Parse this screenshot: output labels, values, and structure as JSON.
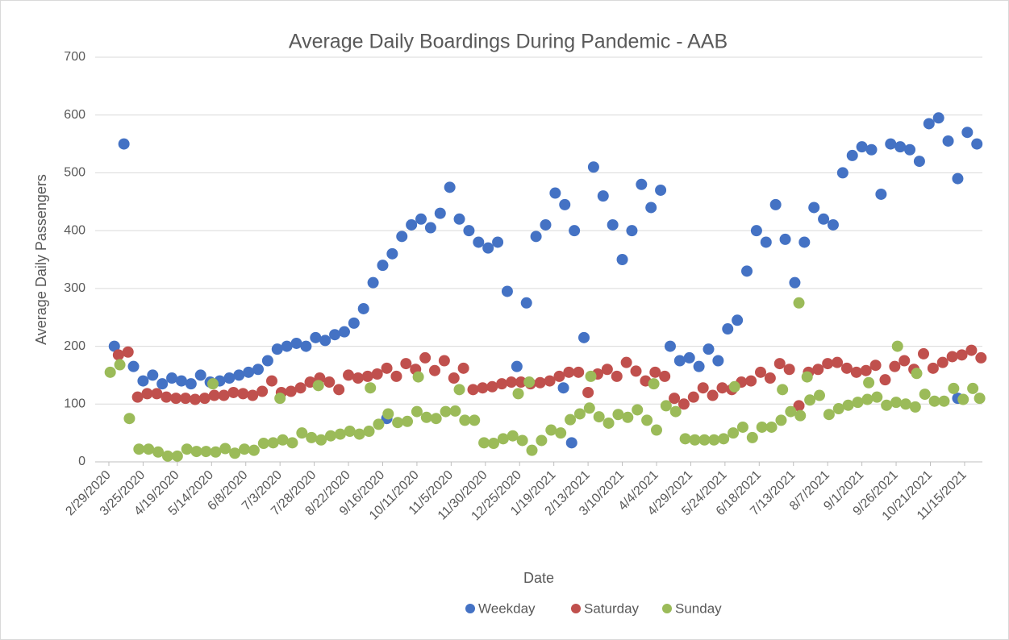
{
  "chart_data": {
    "type": "scatter",
    "title": "Average Daily Boardings During Pandemic - AAB",
    "x_label": "Date",
    "y_label": "Average Daily Passengers",
    "ylim": [
      0,
      700
    ],
    "yticks": [
      0,
      100,
      200,
      300,
      400,
      500,
      600,
      700
    ],
    "grid": true,
    "legend": "bottom",
    "xlim": [
      "2020-02-19",
      "2021-11-28"
    ],
    "xticks": [
      {
        "value": "2020-02-29",
        "label": "2/29/2020"
      },
      {
        "value": "2020-03-25",
        "label": "3/25/2020"
      },
      {
        "value": "2020-04-19",
        "label": "4/19/2020"
      },
      {
        "value": "2020-05-14",
        "label": "5/14/2020"
      },
      {
        "value": "2020-06-08",
        "label": "6/8/2020"
      },
      {
        "value": "2020-07-03",
        "label": "7/3/2020"
      },
      {
        "value": "2020-07-28",
        "label": "7/28/2020"
      },
      {
        "value": "2020-08-22",
        "label": "8/22/2020"
      },
      {
        "value": "2020-09-16",
        "label": "9/16/2020"
      },
      {
        "value": "2020-10-11",
        "label": "10/11/2020"
      },
      {
        "value": "2020-11-05",
        "label": "11/5/2020"
      },
      {
        "value": "2020-11-30",
        "label": "11/30/2020"
      },
      {
        "value": "2020-12-25",
        "label": "12/25/2020"
      },
      {
        "value": "2021-01-19",
        "label": "1/19/2021"
      },
      {
        "value": "2021-02-13",
        "label": "2/13/2021"
      },
      {
        "value": "2021-03-10",
        "label": "3/10/2021"
      },
      {
        "value": "2021-04-04",
        "label": "4/4/2021"
      },
      {
        "value": "2021-04-29",
        "label": "4/29/2021"
      },
      {
        "value": "2021-05-24",
        "label": "5/24/2021"
      },
      {
        "value": "2021-06-18",
        "label": "6/18/2021"
      },
      {
        "value": "2021-07-13",
        "label": "7/13/2021"
      },
      {
        "value": "2021-08-07",
        "label": "8/7/2021"
      },
      {
        "value": "2021-09-01",
        "label": "9/1/2021"
      },
      {
        "value": "2021-09-26",
        "label": "9/26/2021"
      },
      {
        "value": "2021-10-21",
        "label": "10/21/2021"
      },
      {
        "value": "2021-11-15",
        "label": "11/15/2021"
      }
    ],
    "series": [
      {
        "name": "Weekday",
        "color": "#4472c4",
        "x": [
          "2020-03-04",
          "2020-03-11",
          "2020-03-18",
          "2020-03-25",
          "2020-04-01",
          "2020-04-08",
          "2020-04-15",
          "2020-04-22",
          "2020-04-29",
          "2020-05-06",
          "2020-05-13",
          "2020-05-20",
          "2020-05-27",
          "2020-06-03",
          "2020-06-10",
          "2020-06-17",
          "2020-06-24",
          "2020-07-01",
          "2020-07-08",
          "2020-07-15",
          "2020-07-22",
          "2020-07-29",
          "2020-08-05",
          "2020-08-12",
          "2020-08-19",
          "2020-08-26",
          "2020-09-02",
          "2020-09-09",
          "2020-09-16",
          "2020-09-23",
          "2020-09-30",
          "2020-10-07",
          "2020-10-14",
          "2020-10-21",
          "2020-10-28",
          "2020-11-04",
          "2020-11-11",
          "2020-11-18",
          "2020-11-25",
          "2020-12-02",
          "2020-12-09",
          "2020-12-16",
          "2020-12-23",
          "2020-12-30",
          "2021-01-06",
          "2021-01-13",
          "2021-01-20",
          "2021-01-27",
          "2021-02-03",
          "2021-02-10",
          "2021-02-17",
          "2021-02-24",
          "2021-03-03",
          "2021-03-10",
          "2021-03-17",
          "2021-03-24",
          "2021-03-31",
          "2021-04-07",
          "2021-04-14",
          "2021-04-21",
          "2021-04-28",
          "2021-05-05",
          "2021-05-12",
          "2021-05-19",
          "2021-05-26",
          "2021-06-02",
          "2021-06-09",
          "2021-06-16",
          "2021-06-23",
          "2021-06-30",
          "2021-07-07",
          "2021-07-14",
          "2021-07-21",
          "2021-07-28",
          "2021-08-04",
          "2021-08-11",
          "2021-08-18",
          "2021-08-25",
          "2021-09-01",
          "2021-09-08",
          "2021-09-15",
          "2021-09-22",
          "2021-09-29",
          "2021-10-06",
          "2021-10-13",
          "2021-10-20",
          "2021-10-27",
          "2021-11-03",
          "2021-11-10",
          "2021-11-17",
          "2021-11-24",
          "2020-09-19",
          "2021-01-26",
          "2021-02-01",
          "2021-11-10"
        ],
        "values": [
          200,
          550,
          165,
          140,
          150,
          135,
          145,
          140,
          135,
          150,
          138,
          140,
          145,
          150,
          155,
          160,
          175,
          195,
          200,
          205,
          200,
          215,
          210,
          220,
          225,
          240,
          265,
          310,
          340,
          360,
          390,
          410,
          420,
          405,
          430,
          475,
          420,
          400,
          380,
          370,
          380,
          295,
          165,
          275,
          390,
          410,
          465,
          445,
          400,
          215,
          510,
          460,
          410,
          350,
          400,
          480,
          440,
          470,
          200,
          175,
          180,
          165,
          195,
          175,
          230,
          245,
          330,
          400,
          380,
          445,
          385,
          310,
          380,
          440,
          420,
          410,
          500,
          530,
          545,
          540,
          463,
          550,
          545,
          540,
          520,
          585,
          595,
          555,
          490,
          570,
          550,
          75,
          128,
          33,
          110
        ]
      },
      {
        "name": "Saturday",
        "color": "#c0504d",
        "x": [
          "2020-03-07",
          "2020-03-14",
          "2020-03-21",
          "2020-03-28",
          "2020-04-04",
          "2020-04-11",
          "2020-04-18",
          "2020-04-25",
          "2020-05-02",
          "2020-05-09",
          "2020-05-16",
          "2020-05-23",
          "2020-05-30",
          "2020-06-06",
          "2020-06-13",
          "2020-06-20",
          "2020-06-27",
          "2020-07-04",
          "2020-07-11",
          "2020-07-18",
          "2020-07-25",
          "2020-08-01",
          "2020-08-08",
          "2020-08-15",
          "2020-08-22",
          "2020-08-29",
          "2020-09-05",
          "2020-09-12",
          "2020-09-19",
          "2020-09-26",
          "2020-10-03",
          "2020-10-10",
          "2020-10-17",
          "2020-10-24",
          "2020-10-31",
          "2020-11-07",
          "2020-11-14",
          "2020-11-21",
          "2020-11-28",
          "2020-12-05",
          "2020-12-12",
          "2020-12-19",
          "2020-12-26",
          "2021-01-02",
          "2021-01-09",
          "2021-01-16",
          "2021-01-23",
          "2021-01-30",
          "2021-02-06",
          "2021-02-13",
          "2021-02-20",
          "2021-02-27",
          "2021-03-06",
          "2021-03-13",
          "2021-03-20",
          "2021-03-27",
          "2021-04-03",
          "2021-04-10",
          "2021-04-17",
          "2021-04-24",
          "2021-05-01",
          "2021-05-08",
          "2021-05-15",
          "2021-05-22",
          "2021-05-29",
          "2021-06-05",
          "2021-06-12",
          "2021-06-19",
          "2021-06-26",
          "2021-07-03",
          "2021-07-10",
          "2021-07-17",
          "2021-07-24",
          "2021-07-31",
          "2021-08-07",
          "2021-08-14",
          "2021-08-21",
          "2021-08-28",
          "2021-09-04",
          "2021-09-11",
          "2021-09-18",
          "2021-09-25",
          "2021-10-02",
          "2021-10-09",
          "2021-10-16",
          "2021-10-23",
          "2021-10-30",
          "2021-11-06",
          "2021-11-13",
          "2021-11-20",
          "2021-11-27"
        ],
        "values": [
          185,
          190,
          112,
          118,
          118,
          112,
          110,
          110,
          108,
          110,
          115,
          115,
          120,
          118,
          115,
          122,
          140,
          120,
          122,
          128,
          138,
          145,
          138,
          125,
          150,
          145,
          148,
          152,
          162,
          148,
          170,
          160,
          180,
          158,
          175,
          145,
          162,
          125,
          128,
          130,
          135,
          138,
          138,
          135,
          137,
          140,
          148,
          155,
          155,
          120,
          152,
          160,
          148,
          172,
          157,
          140,
          155,
          148,
          110,
          100,
          112,
          128,
          115,
          128,
          125,
          138,
          140,
          155,
          145,
          170,
          160,
          97,
          155,
          160,
          170,
          172,
          162,
          155,
          158,
          167,
          142,
          165,
          175,
          160,
          187,
          162,
          172,
          182,
          185,
          193,
          180
        ]
      },
      {
        "name": "Sunday",
        "color": "#9bbb59",
        "x": [
          "2020-03-01",
          "2020-03-08",
          "2020-03-15",
          "2020-03-22",
          "2020-03-29",
          "2020-04-05",
          "2020-04-12",
          "2020-04-19",
          "2020-04-26",
          "2020-05-03",
          "2020-05-10",
          "2020-05-17",
          "2020-05-24",
          "2020-05-31",
          "2020-06-07",
          "2020-06-14",
          "2020-06-21",
          "2020-06-28",
          "2020-07-05",
          "2020-07-12",
          "2020-07-19",
          "2020-07-26",
          "2020-08-02",
          "2020-08-09",
          "2020-08-16",
          "2020-08-23",
          "2020-08-30",
          "2020-09-06",
          "2020-09-13",
          "2020-09-20",
          "2020-09-27",
          "2020-10-04",
          "2020-10-11",
          "2020-10-18",
          "2020-10-25",
          "2020-11-01",
          "2020-11-08",
          "2020-11-15",
          "2020-11-22",
          "2020-11-29",
          "2020-12-06",
          "2020-12-13",
          "2020-12-20",
          "2020-12-27",
          "2021-01-03",
          "2021-01-10",
          "2021-01-17",
          "2021-01-24",
          "2021-01-31",
          "2021-02-07",
          "2021-02-14",
          "2021-02-21",
          "2021-02-28",
          "2021-03-07",
          "2021-03-14",
          "2021-03-21",
          "2021-03-28",
          "2021-04-04",
          "2021-04-11",
          "2021-04-18",
          "2021-04-25",
          "2021-05-02",
          "2021-05-09",
          "2021-05-16",
          "2021-05-23",
          "2021-05-30",
          "2021-06-06",
          "2021-06-13",
          "2021-06-20",
          "2021-06-27",
          "2021-07-04",
          "2021-07-11",
          "2021-07-18",
          "2021-07-25",
          "2021-08-01",
          "2021-08-08",
          "2021-08-15",
          "2021-08-22",
          "2021-08-29",
          "2021-09-05",
          "2021-09-12",
          "2021-09-19",
          "2021-09-26",
          "2021-10-03",
          "2021-10-10",
          "2021-10-17",
          "2021-10-24",
          "2021-10-31",
          "2021-11-07",
          "2021-11-14",
          "2021-11-21",
          "2020-05-15",
          "2020-07-03",
          "2020-07-31",
          "2020-09-07",
          "2020-10-12",
          "2020-11-11",
          "2020-12-24",
          "2021-01-01",
          "2021-02-15",
          "2021-04-02",
          "2021-05-31",
          "2021-07-05",
          "2021-07-17",
          "2021-07-23",
          "2021-09-06",
          "2021-09-27",
          "2021-10-11",
          "2021-11-26"
        ],
        "values": [
          155,
          168,
          75,
          22,
          22,
          17,
          10,
          10,
          22,
          18,
          18,
          17,
          23,
          15,
          22,
          20,
          32,
          33,
          38,
          33,
          50,
          42,
          38,
          45,
          48,
          53,
          48,
          53,
          65,
          83,
          68,
          70,
          87,
          77,
          75,
          87,
          88,
          72,
          72,
          33,
          32,
          40,
          45,
          37,
          20,
          37,
          55,
          50,
          73,
          83,
          93,
          78,
          67,
          82,
          77,
          90,
          72,
          55,
          97,
          87,
          40,
          38,
          38,
          38,
          40,
          50,
          60,
          42,
          60,
          60,
          72,
          87,
          80,
          107,
          115,
          82,
          92,
          98,
          103,
          108,
          112,
          98,
          103,
          100,
          95,
          117,
          105,
          105,
          127,
          108,
          127,
          135,
          110,
          132,
          128,
          147,
          125,
          118,
          138,
          148,
          135,
          130,
          125,
          275,
          147,
          137,
          200,
          153,
          110
        ]
      }
    ]
  }
}
